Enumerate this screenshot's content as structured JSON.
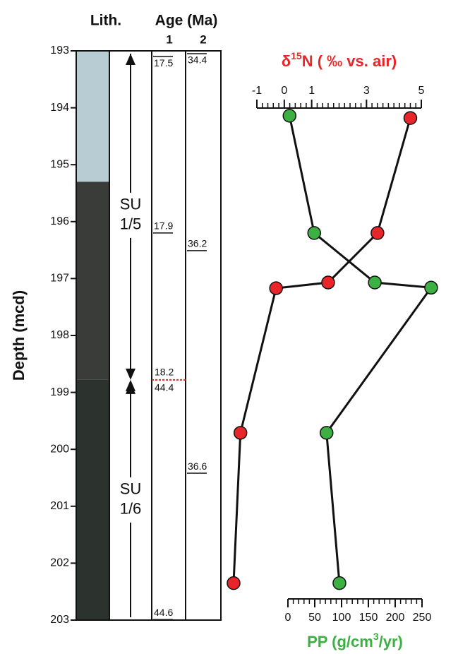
{
  "chart_data": {
    "type": "line",
    "headers": [
      "Lith.",
      "Age (Ma)",
      "1",
      "2"
    ],
    "y_label": "Depth (mcd)",
    "ylim": [
      193,
      203
    ],
    "yticks": [
      193,
      194,
      195,
      196,
      197,
      198,
      199,
      200,
      201,
      202,
      203
    ],
    "x_top": {
      "label": [
        "δ",
        "15",
        "N ( ‰ vs. air)"
      ],
      "color": "#e8262a",
      "xlim": [
        -1,
        5
      ],
      "xticks": [
        -1,
        0,
        1,
        3,
        5
      ]
    },
    "x_bottom": {
      "label": [
        "PP (g/cm",
        "3",
        "/yr)"
      ],
      "color": "#3cb043",
      "xlim": [
        0,
        250
      ],
      "xticks": [
        0,
        50,
        100,
        150,
        200,
        250
      ]
    },
    "series": [
      {
        "axis": "x_top",
        "color": "#e8262a",
        "x": [
          4.6,
          3.4,
          1.6,
          -0.3,
          -1.6,
          -1.85
        ],
        "y": [
          194.18,
          196.2,
          197.07,
          197.17,
          199.71,
          202.35
        ]
      },
      {
        "axis": "x_bottom",
        "color": "#3cb043",
        "x": [
          3,
          49,
          162,
          267,
          72,
          96
        ],
        "y": [
          194.14,
          196.2,
          197.07,
          197.16,
          199.71,
          202.35
        ]
      }
    ],
    "lithology": [
      {
        "top": 193,
        "bottom": 195.3,
        "color": "#b7ccd3"
      },
      {
        "top": 195.3,
        "bottom": 198.78,
        "color": "#3a3c3a"
      },
      {
        "top": 198.78,
        "bottom": 203,
        "color": "#2c322d"
      }
    ],
    "units": [
      {
        "lines": [
          "SU",
          "1/5"
        ],
        "top": 193,
        "bottom": 198.78
      },
      {
        "lines": [
          "SU",
          "1/6"
        ],
        "top": 198.78,
        "bottom": 203
      }
    ],
    "boundary": {
      "depth": 198.78,
      "labels": [
        "18.2",
        "44.4"
      ]
    },
    "age_markers": [
      {
        "column": 0,
        "depth": 193.1,
        "label": "17.5"
      },
      {
        "column": 1,
        "depth": 193.05,
        "label": "34.4"
      },
      {
        "column": 0,
        "depth": 196.2,
        "label": "17.9"
      },
      {
        "column": 1,
        "depth": 196.51,
        "label": "36.2"
      },
      {
        "column": 1,
        "depth": 200.42,
        "label": "36.6"
      },
      {
        "column": 0,
        "depth": 202.99,
        "label": "44.6"
      }
    ]
  }
}
